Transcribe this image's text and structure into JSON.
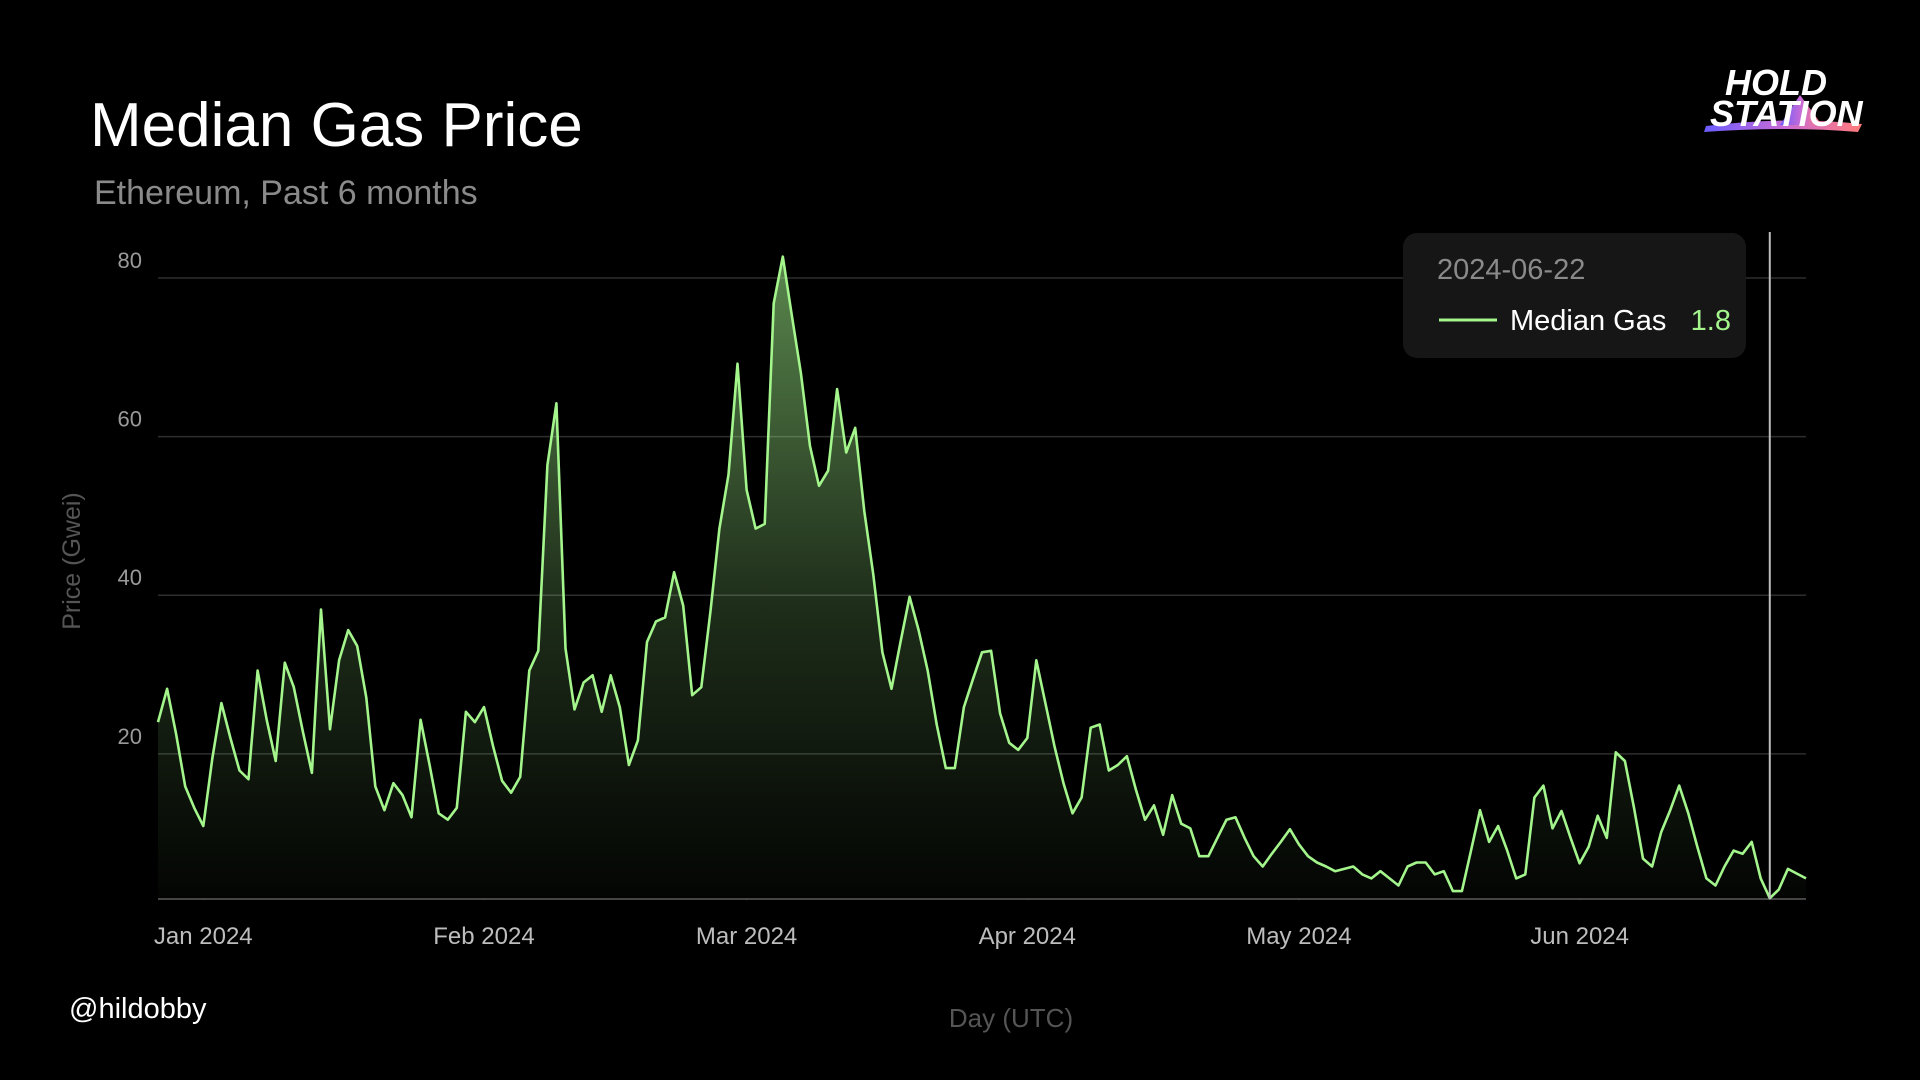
{
  "chart_data": {
    "type": "line",
    "title": "Median Gas Price",
    "subtitle": "Ethereum, Past 6 months",
    "x_label": "Day (UTC)",
    "y_label": "Price (Gwei)",
    "credit": "@hildobby",
    "logo": [
      "HOLD",
      "STATION"
    ],
    "x": [
      "2023-12-27",
      "2023-12-28",
      "2023-12-29",
      "2023-12-30",
      "2023-12-31",
      "2024-01-01",
      "2024-01-02",
      "2024-01-03",
      "2024-01-04",
      "2024-01-05",
      "2024-01-06",
      "2024-01-07",
      "2024-01-08",
      "2024-01-09",
      "2024-01-10",
      "2024-01-11",
      "2024-01-12",
      "2024-01-13",
      "2024-01-14",
      "2024-01-15",
      "2024-01-16",
      "2024-01-17",
      "2024-01-18",
      "2024-01-19",
      "2024-01-20",
      "2024-01-21",
      "2024-01-22",
      "2024-01-23",
      "2024-01-24",
      "2024-01-25",
      "2024-01-26",
      "2024-01-27",
      "2024-01-28",
      "2024-01-29",
      "2024-01-30",
      "2024-01-31",
      "2024-02-01",
      "2024-02-02",
      "2024-02-03",
      "2024-02-04",
      "2024-02-05",
      "2024-02-06",
      "2024-02-07",
      "2024-02-08",
      "2024-02-09",
      "2024-02-10",
      "2024-02-11",
      "2024-02-12",
      "2024-02-13",
      "2024-02-14",
      "2024-02-15",
      "2024-02-16",
      "2024-02-17",
      "2024-02-18",
      "2024-02-19",
      "2024-02-20",
      "2024-02-21",
      "2024-02-22",
      "2024-02-23",
      "2024-02-24",
      "2024-02-25",
      "2024-02-26",
      "2024-02-27",
      "2024-02-28",
      "2024-02-29",
      "2024-03-01",
      "2024-03-02",
      "2024-03-03",
      "2024-03-04",
      "2024-03-05",
      "2024-03-06",
      "2024-03-07",
      "2024-03-08",
      "2024-03-09",
      "2024-03-10",
      "2024-03-11",
      "2024-03-12",
      "2024-03-13",
      "2024-03-14",
      "2024-03-15",
      "2024-03-16",
      "2024-03-17",
      "2024-03-18",
      "2024-03-19",
      "2024-03-20",
      "2024-03-21",
      "2024-03-22",
      "2024-03-23",
      "2024-03-24",
      "2024-03-25",
      "2024-03-26",
      "2024-03-27",
      "2024-03-28",
      "2024-03-29",
      "2024-03-30",
      "2024-03-31",
      "2024-04-01",
      "2024-04-02",
      "2024-04-03",
      "2024-04-04",
      "2024-04-05",
      "2024-04-06",
      "2024-04-07",
      "2024-04-08",
      "2024-04-09",
      "2024-04-10",
      "2024-04-11",
      "2024-04-12",
      "2024-04-13",
      "2024-04-14",
      "2024-04-15",
      "2024-04-16",
      "2024-04-17",
      "2024-04-18",
      "2024-04-19",
      "2024-04-20",
      "2024-04-21",
      "2024-04-22",
      "2024-04-23",
      "2024-04-24",
      "2024-04-25",
      "2024-04-26",
      "2024-04-27",
      "2024-04-28",
      "2024-04-29",
      "2024-04-30",
      "2024-05-01",
      "2024-05-02",
      "2024-05-03",
      "2024-05-04",
      "2024-05-05",
      "2024-05-06",
      "2024-05-07",
      "2024-05-08",
      "2024-05-09",
      "2024-05-10",
      "2024-05-11",
      "2024-05-12",
      "2024-05-13",
      "2024-05-14",
      "2024-05-15",
      "2024-05-16",
      "2024-05-17",
      "2024-05-18",
      "2024-05-19",
      "2024-05-20",
      "2024-05-21",
      "2024-05-22",
      "2024-05-23",
      "2024-05-24",
      "2024-05-25",
      "2024-05-26",
      "2024-05-27",
      "2024-05-28",
      "2024-05-29",
      "2024-05-30",
      "2024-05-31",
      "2024-06-01",
      "2024-06-02",
      "2024-06-03",
      "2024-06-04",
      "2024-06-05",
      "2024-06-06",
      "2024-06-07",
      "2024-06-08",
      "2024-06-09",
      "2024-06-10",
      "2024-06-11",
      "2024-06-12",
      "2024-06-13",
      "2024-06-14",
      "2024-06-15",
      "2024-06-16",
      "2024-06-17",
      "2024-06-18",
      "2024-06-19",
      "2024-06-20",
      "2024-06-21",
      "2024-06-22",
      "2024-06-23",
      "2024-06-24",
      "2024-06-25",
      "2024-06-26"
    ],
    "series": [
      {
        "name": "Median Gas",
        "color": "#a3f58c",
        "values": [
          24.0,
          28.2,
          22.5,
          15.9,
          13.2,
          10.9,
          19.4,
          26.4,
          22.0,
          17.9,
          16.8,
          30.5,
          24.3,
          19.1,
          31.5,
          28.4,
          22.8,
          17.6,
          38.2,
          23.1,
          31.8,
          35.6,
          33.6,
          27.1,
          15.9,
          12.9,
          16.3,
          14.8,
          12.0,
          24.3,
          18.6,
          12.5,
          11.7,
          13.2,
          25.3,
          24.0,
          25.9,
          21.0,
          16.6,
          15.1,
          17.1,
          30.5,
          33.0,
          56.4,
          64.2,
          33.3,
          25.6,
          29.0,
          29.9,
          25.3,
          29.9,
          25.9,
          18.6,
          21.7,
          34.1,
          36.7,
          37.2,
          42.9,
          38.7,
          27.4,
          28.4,
          37.9,
          48.4,
          55.2,
          69.2,
          53.3,
          48.4,
          49.0,
          76.8,
          82.7,
          75.3,
          68.0,
          58.8,
          53.8,
          55.7,
          66.0,
          58.0,
          61.1,
          50.6,
          42.6,
          32.8,
          28.2,
          34.1,
          39.8,
          35.6,
          30.5,
          23.7,
          18.2,
          18.2,
          25.9,
          29.4,
          32.8,
          33.0,
          25.1,
          21.4,
          20.5,
          22.0,
          31.8,
          26.4,
          21.0,
          16.3,
          12.5,
          14.5,
          23.3,
          23.7,
          17.9,
          18.6,
          19.7,
          15.5,
          11.7,
          13.5,
          9.8,
          14.8,
          11.2,
          10.6,
          7.1,
          7.1,
          9.4,
          11.7,
          12.0,
          9.4,
          7.1,
          5.8,
          7.4,
          8.9,
          10.5,
          8.6,
          7.1,
          6.3,
          5.8,
          5.2,
          5.5,
          5.8,
          4.8,
          4.3,
          5.2,
          4.3,
          3.4,
          5.8,
          6.3,
          6.3,
          4.8,
          5.2,
          2.7,
          2.7,
          7.8,
          12.9,
          8.9,
          10.9,
          7.8,
          4.3,
          4.8,
          14.5,
          16.0,
          10.6,
          12.8,
          9.4,
          6.2,
          8.3,
          12.2,
          9.4,
          20.2,
          19.1,
          13.2,
          6.8,
          5.8,
          10.1,
          12.9,
          16.0,
          12.5,
          8.3,
          4.3,
          3.4,
          5.8,
          7.8,
          7.4,
          8.9,
          4.3,
          1.8,
          2.9,
          5.5,
          4.9,
          4.3
        ]
      }
    ],
    "xlim": [
      "2023-12-27",
      "2024-06-26"
    ],
    "xticks": [
      {
        "value": "2024-01-01",
        "label": "Jan 2024"
      },
      {
        "value": "2024-02-01",
        "label": "Feb 2024"
      },
      {
        "value": "2024-03-01",
        "label": "Mar 2024"
      },
      {
        "value": "2024-04-01",
        "label": "Apr 2024"
      },
      {
        "value": "2024-05-01",
        "label": "May 2024"
      },
      {
        "value": "2024-06-01",
        "label": "Jun 2024"
      }
    ],
    "ylim": [
      1.7,
      88
    ],
    "yticks": [
      20,
      40,
      60,
      80
    ],
    "grid": true,
    "tooltip": {
      "x": "2024-06-22"
    }
  }
}
